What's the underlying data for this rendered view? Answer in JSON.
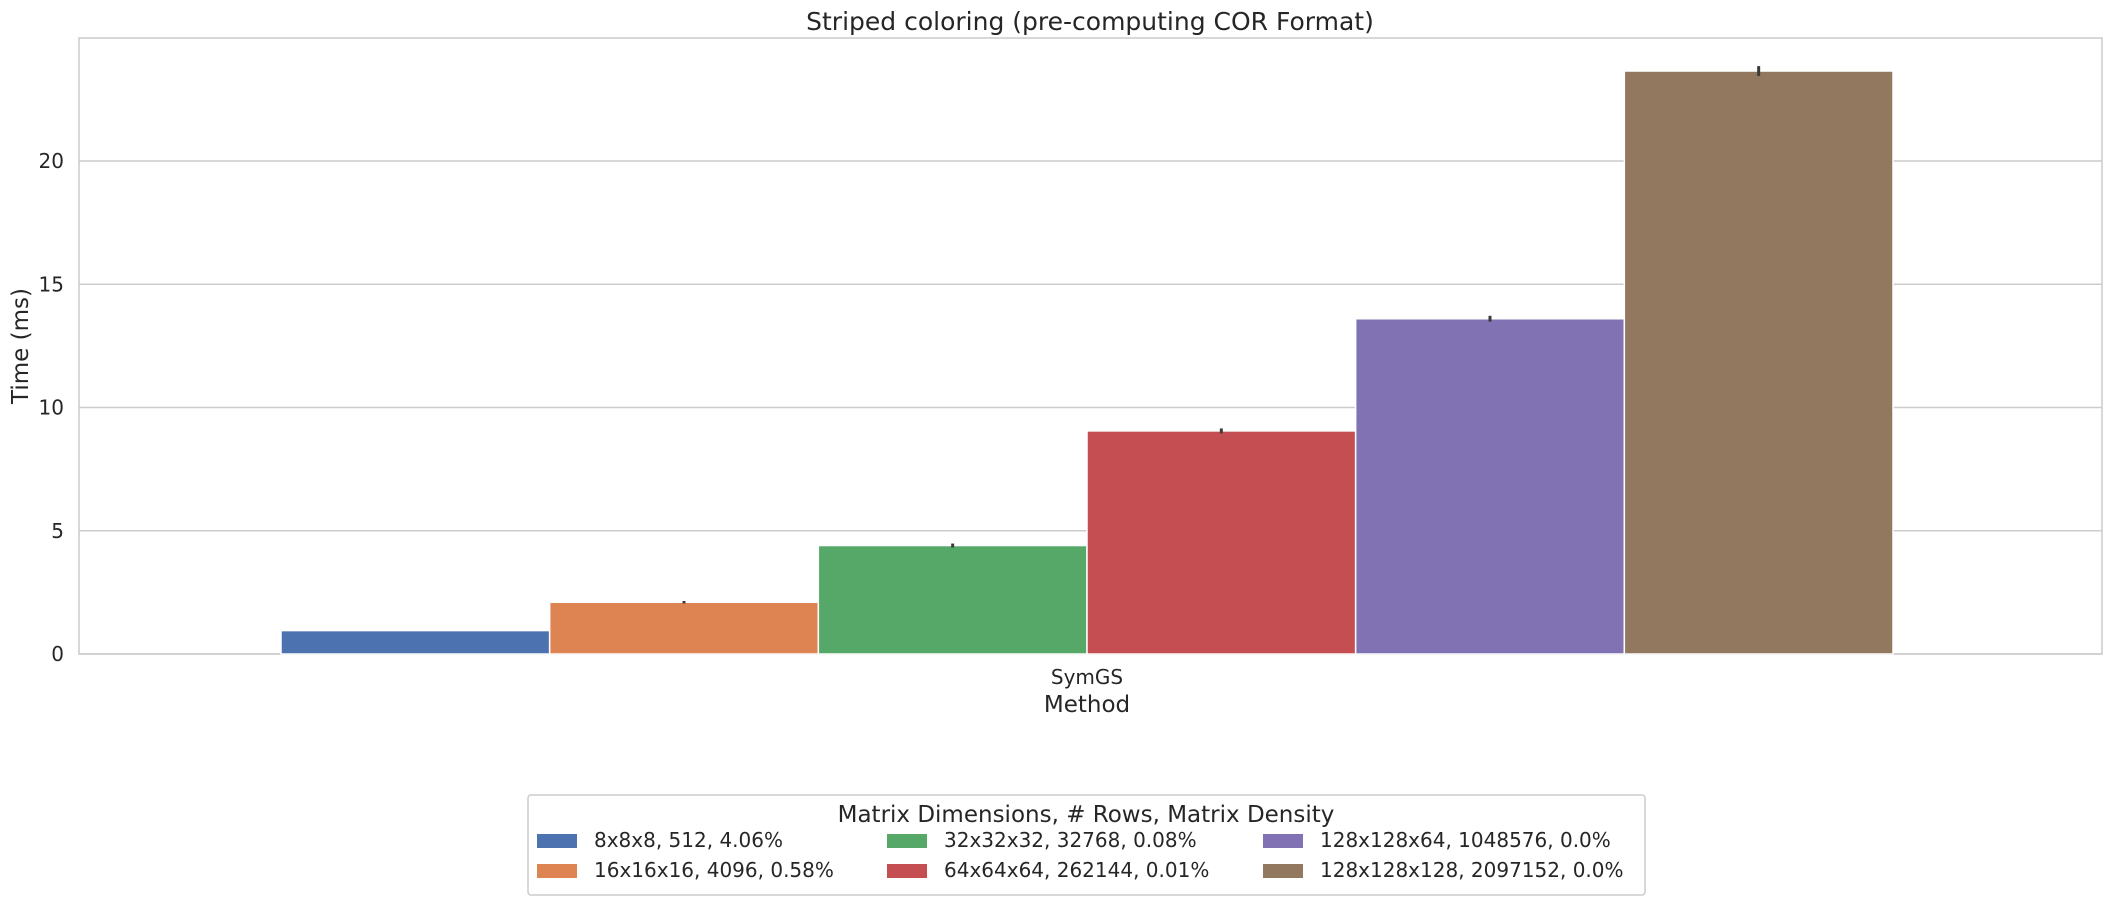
{
  "chart_data": {
    "type": "bar",
    "title": "Striped coloring (pre-computing COR Format)",
    "xlabel": "Method",
    "ylabel": "Time (ms)",
    "categories": [
      "SymGS"
    ],
    "ylim": [
      0,
      25
    ],
    "yticks": [
      0,
      5,
      10,
      15,
      20
    ],
    "grid": true,
    "legend": {
      "title": "Matrix Dimensions, # Rows, Matrix Density",
      "placement": "bottom-center",
      "columns": 3
    },
    "series": [
      {
        "name": "8x8x8, 512, 4.06%",
        "values": [
          0.95
        ],
        "error": [
          0.0
        ],
        "color": "#4c72b0"
      },
      {
        "name": "16x16x16, 4096, 0.58%",
        "values": [
          2.1
        ],
        "error": [
          0.05
        ],
        "color": "#dd8452"
      },
      {
        "name": "32x32x32, 32768, 0.08%",
        "values": [
          4.4
        ],
        "error": [
          0.08
        ],
        "color": "#55a868"
      },
      {
        "name": "64x64x64, 262144, 0.01%",
        "values": [
          9.05
        ],
        "error": [
          0.1
        ],
        "color": "#c44e52"
      },
      {
        "name": "128x128x64, 1048576, 0.0%",
        "values": [
          13.6
        ],
        "error": [
          0.12
        ],
        "color": "#8172b3"
      },
      {
        "name": "128x128x128, 2097152, 0.0%",
        "values": [
          23.65
        ],
        "error": [
          0.2
        ],
        "color": "#937860"
      }
    ]
  }
}
